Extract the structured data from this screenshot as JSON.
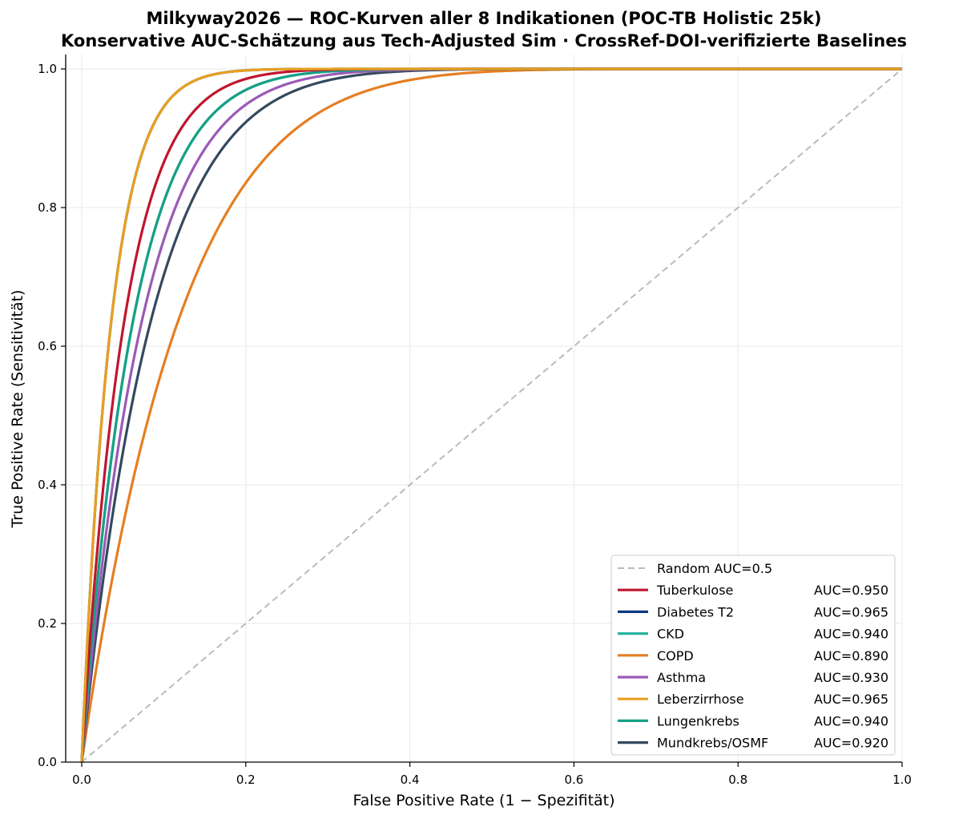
{
  "chart_data": {
    "type": "line",
    "title": "Milkyway2026 — ROC-Kurven aller 8 Indikationen (POC-TB Holistic 25k)",
    "subtitle": "Konservative AUC-Schätzung aus Tech-Adjusted Sim · CrossRef-DOI-verifizierte Baselines",
    "xlabel": "False Positive Rate (1 − Spezifität)",
    "ylabel": "True Positive Rate (Sensitivität)",
    "xlim": [
      0,
      1
    ],
    "ylim": [
      0,
      1
    ],
    "xticks": [
      "0.0",
      "0.2",
      "0.4",
      "0.6",
      "0.8",
      "1.0"
    ],
    "yticks": [
      "0.0",
      "0.2",
      "0.4",
      "0.6",
      "0.8",
      "1.0"
    ],
    "grid": true,
    "legend_position": "bottom-right",
    "reference": {
      "label": "Random AUC=0.5",
      "auc": 0.5,
      "color": "#bbbbbb"
    },
    "series": [
      {
        "name": "Tuberkulose",
        "auc": 0.95,
        "auc_label": "AUC=0.950",
        "color": "#c0152f"
      },
      {
        "name": "Diabetes T2",
        "auc": 0.965,
        "auc_label": "AUC=0.965",
        "color": "#0b3a82"
      },
      {
        "name": "CKD",
        "auc": 0.94,
        "auc_label": "AUC=0.940",
        "color": "#26b5a0"
      },
      {
        "name": "COPD",
        "auc": 0.89,
        "auc_label": "AUC=0.890",
        "color": "#e67e22"
      },
      {
        "name": "Asthma",
        "auc": 0.93,
        "auc_label": "AUC=0.930",
        "color": "#9b59b6"
      },
      {
        "name": "Leberzirrhose",
        "auc": 0.965,
        "auc_label": "AUC=0.965",
        "color": "#e8a020"
      },
      {
        "name": "Lungenkrebs",
        "auc": 0.94,
        "auc_label": "AUC=0.940",
        "color": "#16a085"
      },
      {
        "name": "Mundkrebs/OSMF",
        "auc": 0.92,
        "auc_label": "AUC=0.920",
        "color": "#34495e"
      }
    ]
  }
}
